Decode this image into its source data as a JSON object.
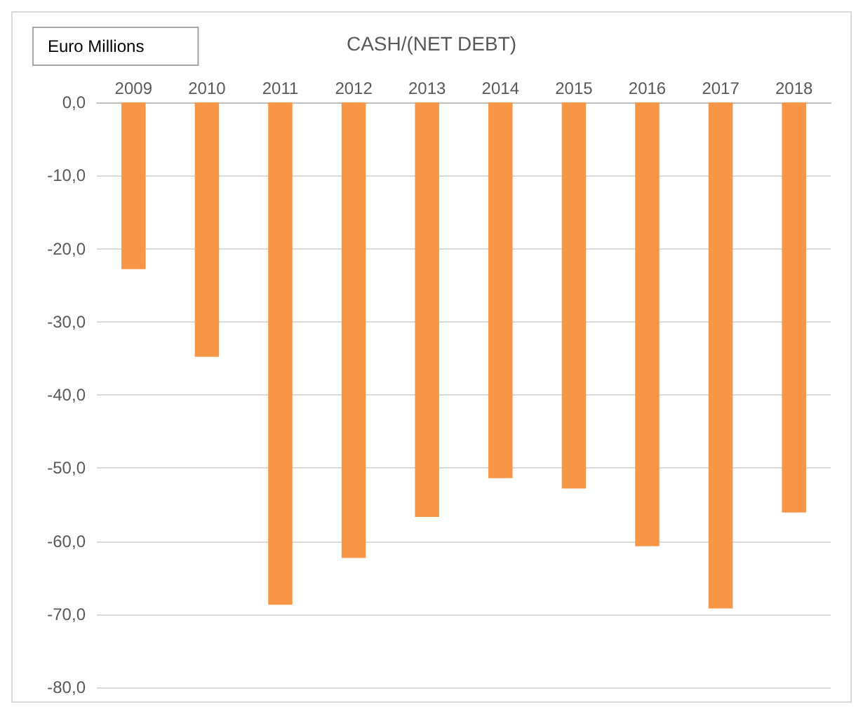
{
  "chart_data": {
    "type": "bar",
    "title": "CASH/(NET DEBT)",
    "annotations": [
      "Euro Millions"
    ],
    "categories": [
      "2009",
      "2010",
      "2011",
      "2012",
      "2013",
      "2014",
      "2015",
      "2016",
      "2017",
      "2018"
    ],
    "values": [
      -22.8,
      -34.8,
      -68.7,
      -62.3,
      -56.7,
      -51.4,
      -52.8,
      -60.7,
      -69.2,
      -56.1
    ],
    "color": "#f79646",
    "ylim": [
      -80,
      0
    ],
    "yticks": [
      {
        "value": -80,
        "label": "-80,0"
      },
      {
        "value": -70,
        "label": "-70,0"
      },
      {
        "value": -60,
        "label": "-60,0"
      },
      {
        "value": -50,
        "label": "-50,0"
      },
      {
        "value": -40,
        "label": "-40,0"
      },
      {
        "value": -30,
        "label": "-30,0"
      },
      {
        "value": -20,
        "label": "-20,0"
      },
      {
        "value": -10,
        "label": "-10,0"
      },
      {
        "value": 0,
        "label": "0,0"
      }
    ],
    "grid": true
  }
}
